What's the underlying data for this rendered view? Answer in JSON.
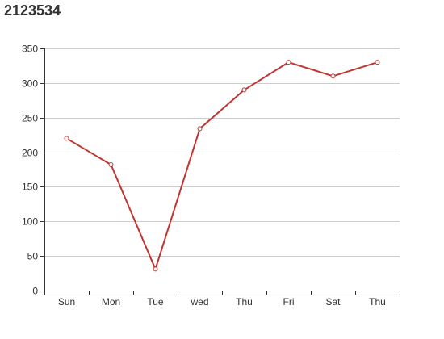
{
  "chart_data": {
    "type": "line",
    "title": "2123534",
    "xlabel": "",
    "ylabel": "",
    "categories": [
      "Sun",
      "Mon",
      "Tue",
      "wed",
      "Thu",
      "Fri",
      "Sat",
      "Thu"
    ],
    "series": [
      {
        "values": [
          220,
          182,
          31,
          234,
          290,
          330,
          310,
          330
        ]
      }
    ],
    "ylim": [
      0,
      350
    ],
    "yticks": [
      0,
      50,
      100,
      150,
      200,
      250,
      300,
      350
    ],
    "grid": true,
    "colors": {
      "line": "#c23531",
      "grid": "#cccccc",
      "axis": "#333333",
      "text": "#333333"
    }
  }
}
